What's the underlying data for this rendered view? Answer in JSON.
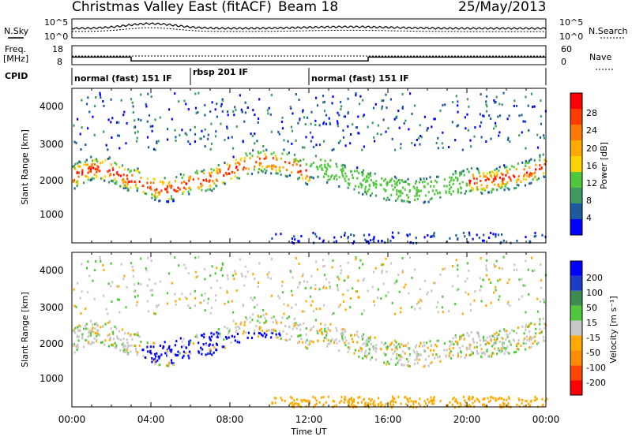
{
  "header": {
    "site": "Christmas Valley East (fitACF)",
    "beam": "Beam 18",
    "date": "25/May/2013"
  },
  "noise_panel": {
    "left_label": "N.Sky",
    "right_label": "N.Search",
    "left_ticks": [
      "10^5",
      "10^0"
    ],
    "right_ticks": [
      "10^5",
      "10^0"
    ]
  },
  "freq_panel": {
    "left_label_1": "Freq.",
    "left_label_2": "[MHz]",
    "right_label": "Nave",
    "left_ticks": [
      "18",
      "8"
    ],
    "right_ticks": [
      "60",
      "0"
    ]
  },
  "cpid_panel": {
    "label": "CPID",
    "segments": [
      {
        "name": "normal (fast) 151 IF",
        "start_h": 0,
        "end_h": 6
      },
      {
        "name": "rbsp 201 IF",
        "start_h": 6,
        "end_h": 12
      },
      {
        "name": "normal (fast) 151 IF",
        "start_h": 12,
        "end_h": 24
      }
    ]
  },
  "power_panel": {
    "ylabel": "Slant Range [km]",
    "yticks": [
      "4000",
      "3000",
      "2000",
      "1000"
    ],
    "colorbar_label": "Power [dB]",
    "colorbar_ticks": [
      "28",
      "24",
      "20",
      "16",
      "12",
      "8",
      "4"
    ],
    "colors": [
      "#0000ff",
      "#1e5aa0",
      "#3c9a62",
      "#50c83c",
      "#ffd400",
      "#ffaa00",
      "#ff7800",
      "#ff3c00",
      "#ff0000"
    ]
  },
  "velocity_panel": {
    "ylabel": "Slant Range [km]",
    "yticks": [
      "4000",
      "3000",
      "2000",
      "1000"
    ],
    "colorbar_label": "Velocity [m s⁻¹]",
    "colorbar_ticks": [
      "200",
      "100",
      "50",
      "15",
      "-15",
      "-50",
      "-100",
      "-200"
    ],
    "colors": [
      "#0000ff",
      "#1e3cc8",
      "#3c8c50",
      "#50c83c",
      "#c8c8c8",
      "#ffaa00",
      "#ff8c00",
      "#ff4600",
      "#ff0000"
    ]
  },
  "xaxis": {
    "label": "Time UT",
    "ticks": [
      "00:00",
      "04:00",
      "08:00",
      "12:00",
      "16:00",
      "20:00",
      "00:00"
    ]
  },
  "chart_data": {
    "type": "heatmap",
    "x_range_hours": [
      0,
      24
    ],
    "y_range_km": [
      180,
      4500
    ],
    "power_db_range": [
      0,
      30
    ],
    "velocity_range": [
      -200,
      200
    ],
    "frequency_mhz": {
      "times_h": [
        0,
        3,
        15,
        24
      ],
      "values": [
        12,
        10,
        12,
        12
      ]
    }
  }
}
